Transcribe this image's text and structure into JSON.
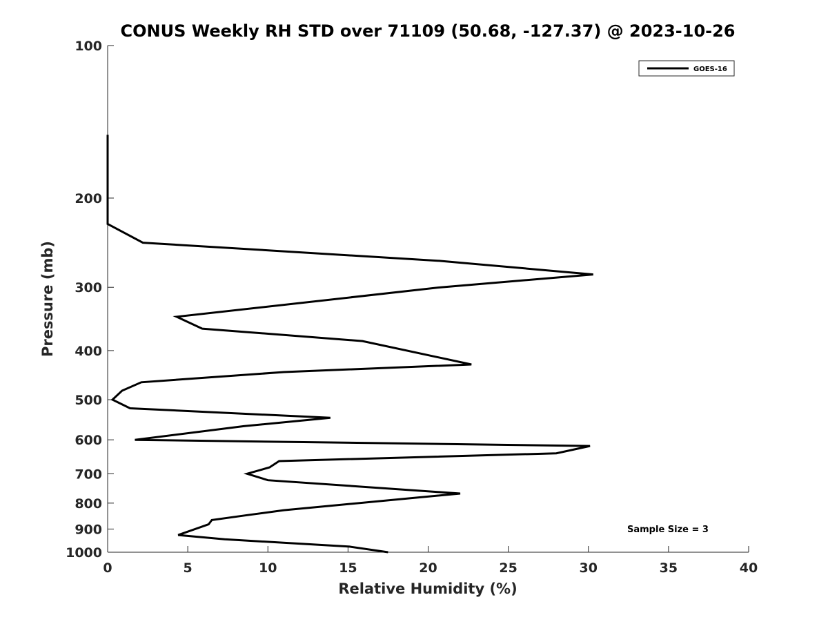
{
  "chart_data": {
    "type": "line",
    "title": "CONUS Weekly RH STD over 71109 (50.68, -127.37) @ 2023-10-26",
    "xlabel": "Relative Humidity (%)",
    "ylabel": "Pressure (mb)",
    "xlim": [
      0,
      40
    ],
    "ylim": [
      100,
      1000
    ],
    "yscale": "log",
    "y_reversed": true,
    "x_ticks": [
      0,
      5,
      10,
      15,
      20,
      25,
      30,
      35,
      40
    ],
    "x_tick_labels": [
      "0",
      "5",
      "10",
      "15",
      "20",
      "25",
      "30",
      "35",
      "40"
    ],
    "y_ticks": [
      100,
      200,
      300,
      400,
      500,
      600,
      700,
      800,
      900,
      1000
    ],
    "y_tick_labels": [
      "100",
      "200",
      "300",
      "400",
      "500",
      "600",
      "700",
      "800",
      "900",
      "1000"
    ],
    "grid": false,
    "legend_position": "top-right",
    "annotation": "Sample Size = 3",
    "series": [
      {
        "name": "GOES-16",
        "color": "#000000",
        "points": [
          [
            0.0,
            150
          ],
          [
            0.0,
            175
          ],
          [
            0.0,
            200
          ],
          [
            0.0,
            225
          ],
          [
            2.2,
            245
          ],
          [
            20.7,
            266
          ],
          [
            30.3,
            283
          ],
          [
            20.8,
            300
          ],
          [
            4.3,
            343
          ],
          [
            5.9,
            362
          ],
          [
            15.9,
            383
          ],
          [
            22.7,
            426
          ],
          [
            11.0,
            441
          ],
          [
            2.1,
            462
          ],
          [
            0.9,
            480
          ],
          [
            0.3,
            500
          ],
          [
            1.4,
            520
          ],
          [
            13.9,
            543
          ],
          [
            8.5,
            564
          ],
          [
            1.7,
            600
          ],
          [
            30.1,
            617
          ],
          [
            28.0,
            638
          ],
          [
            10.7,
            661
          ],
          [
            10.1,
            680
          ],
          [
            8.7,
            700
          ],
          [
            10.0,
            721
          ],
          [
            22.0,
            766
          ],
          [
            11.0,
            826
          ],
          [
            8.7,
            845
          ],
          [
            6.5,
            864
          ],
          [
            6.3,
            881
          ],
          [
            4.4,
            925
          ],
          [
            7.3,
            943
          ],
          [
            15.1,
            975
          ],
          [
            17.5,
            1000
          ]
        ]
      }
    ]
  }
}
